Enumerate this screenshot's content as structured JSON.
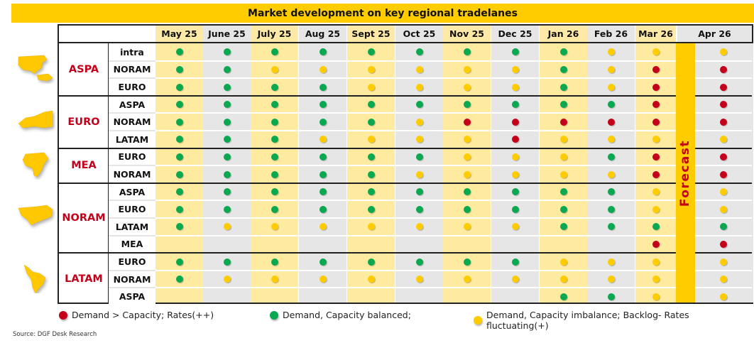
{
  "title": "Market development on key regional tradelanes",
  "colors": {
    "red": "#c4001a",
    "green": "#0aa850",
    "yellow": "#ffcc00",
    "brand_yellow": "#ffcc00",
    "region_text": "#c4001a"
  },
  "forecast_label": "Forecast",
  "legend": [
    {
      "status": "R",
      "label": "Demand > Capacity; Rates(++)"
    },
    {
      "status": "G",
      "label": "Demand, Capacity balanced;"
    },
    {
      "status": "Y",
      "label": "Demand, Capacity imbalance; Backlog- Rates fluctuating(+)"
    }
  ],
  "source": "Source: DGF Desk Research",
  "chart_data": {
    "type": "table",
    "title": "Market development on key regional tradelanes",
    "columns": [
      "May 25",
      "June 25",
      "July 25",
      "Aug 25",
      "Sept 25",
      "Oct 25",
      "Nov 25",
      "Dec 25",
      "Jan 26",
      "Feb 26",
      "Mar 26",
      "Apr 26"
    ],
    "forecast_starts_after": "Mar 26",
    "status_legend": {
      "R": "Demand > Capacity; Rates(++)",
      "G": "Demand, Capacity balanced;",
      "Y": "Demand, Capacity imbalance; Backlog- Rates fluctuating(+)"
    },
    "groups": [
      {
        "region": "ASPA",
        "icon": "asia-pacific-map-icon",
        "lanes": [
          {
            "lane": "intra",
            "values": [
              "G",
              "G",
              "G",
              "G",
              "G",
              "G",
              "G",
              "G",
              "G",
              "Y",
              "Y",
              "Y"
            ]
          },
          {
            "lane": "NORAM",
            "values": [
              "G",
              "G",
              "Y",
              "Y",
              "Y",
              "Y",
              "Y",
              "Y",
              "G",
              "Y",
              "R",
              "R"
            ]
          },
          {
            "lane": "EURO",
            "values": [
              "G",
              "G",
              "G",
              "G",
              "Y",
              "Y",
              "Y",
              "Y",
              "G",
              "Y",
              "R",
              "R"
            ]
          }
        ]
      },
      {
        "region": "EURO",
        "icon": "europe-map-icon",
        "lanes": [
          {
            "lane": "ASPA",
            "values": [
              "G",
              "G",
              "G",
              "G",
              "G",
              "G",
              "G",
              "G",
              "G",
              "G",
              "R",
              "R"
            ]
          },
          {
            "lane": "NORAM",
            "values": [
              "G",
              "G",
              "G",
              "G",
              "G",
              "Y",
              "R",
              "R",
              "R",
              "R",
              "R",
              "R"
            ]
          },
          {
            "lane": "LATAM",
            "values": [
              "G",
              "G",
              "G",
              "Y",
              "Y",
              "Y",
              "Y",
              "R",
              "Y",
              "Y",
              "Y",
              "Y"
            ]
          }
        ]
      },
      {
        "region": "MEA",
        "icon": "africa-map-icon",
        "lanes": [
          {
            "lane": "EURO",
            "values": [
              "G",
              "G",
              "G",
              "G",
              "G",
              "G",
              "Y",
              "Y",
              "Y",
              "G",
              "R",
              "R"
            ]
          },
          {
            "lane": "NORAM",
            "values": [
              "G",
              "G",
              "G",
              "G",
              "G",
              "Y",
              "Y",
              "Y",
              "Y",
              "Y",
              "R",
              "R"
            ]
          }
        ]
      },
      {
        "region": "NORAM",
        "icon": "north-america-map-icon",
        "lanes": [
          {
            "lane": "ASPA",
            "values": [
              "G",
              "G",
              "G",
              "G",
              "G",
              "G",
              "G",
              "G",
              "G",
              "G",
              "Y",
              "Y"
            ]
          },
          {
            "lane": "EURO",
            "values": [
              "G",
              "G",
              "G",
              "G",
              "G",
              "G",
              "G",
              "G",
              "G",
              "G",
              "Y",
              "Y"
            ]
          },
          {
            "lane": "LATAM",
            "values": [
              "G",
              "Y",
              "Y",
              "Y",
              "Y",
              "Y",
              "Y",
              "Y",
              "G",
              "G",
              "G",
              "G"
            ]
          },
          {
            "lane": "MEA",
            "values": [
              "",
              "",
              "",
              "",
              "",
              "",
              "",
              "",
              "",
              "",
              "R",
              "R"
            ]
          }
        ]
      },
      {
        "region": "LATAM",
        "icon": "south-america-map-icon",
        "lanes": [
          {
            "lane": "EURO",
            "values": [
              "G",
              "G",
              "G",
              "G",
              "G",
              "G",
              "G",
              "G",
              "Y",
              "Y",
              "Y",
              "Y"
            ]
          },
          {
            "lane": "NORAM",
            "values": [
              "G",
              "Y",
              "Y",
              "Y",
              "Y",
              "Y",
              "Y",
              "Y",
              "Y",
              "Y",
              "Y",
              "Y"
            ]
          },
          {
            "lane": "ASPA",
            "values": [
              "",
              "",
              "",
              "",
              "",
              "",
              "",
              "",
              "G",
              "G",
              "Y",
              "Y"
            ]
          }
        ]
      }
    ]
  }
}
